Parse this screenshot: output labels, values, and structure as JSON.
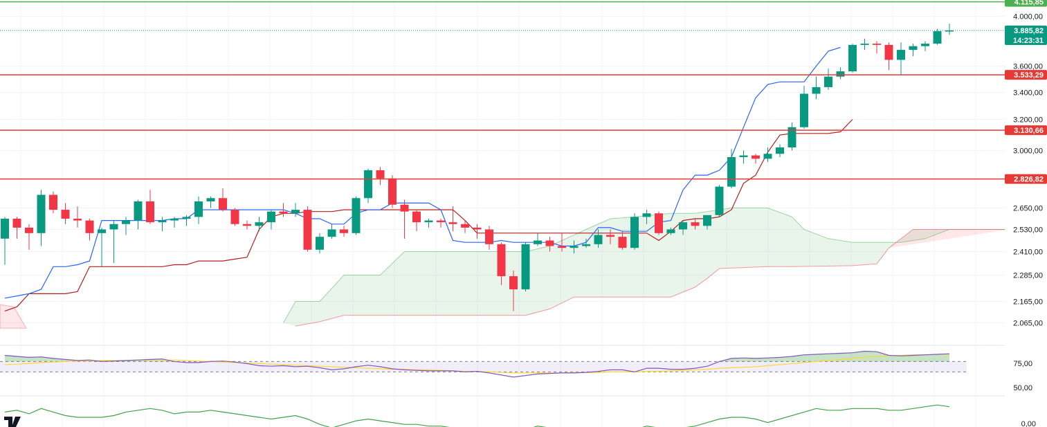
{
  "chart_data": {
    "type": "candlestick",
    "main_y_ticks": [
      "4.000,00",
      "3.600,00",
      "3.400,00",
      "3.200,00",
      "3.000,00",
      "2.650,00",
      "2.530,00",
      "2.410,00",
      "2.285,00",
      "2.165,00",
      "2.065,00"
    ],
    "price_tick_values": [
      4000,
      3600,
      3400,
      3200,
      3000,
      2650,
      2530,
      2410,
      2285,
      2165,
      2065
    ],
    "horizontal_levels": [
      {
        "label": "4.115,85",
        "value": 4115.85,
        "color": "#4caf50"
      },
      {
        "label": "3.533,29",
        "value": 3533.29,
        "color": "#e53935"
      },
      {
        "label": "3.130,66",
        "value": 3130.66,
        "color": "#e53935"
      },
      {
        "label": "2.826,82",
        "value": 2826.82,
        "color": "#e53935"
      }
    ],
    "current_price": {
      "label": "3.885,82",
      "countdown": "14:23:31",
      "value": 3885.82,
      "color": "#089981"
    },
    "candles": [
      [
        2480,
        2600,
        2340,
        2590
      ],
      [
        2590,
        2600,
        2480,
        2540
      ],
      [
        2540,
        2560,
        2420,
        2510
      ],
      [
        2510,
        2760,
        2440,
        2730
      ],
      [
        2730,
        2750,
        2620,
        2640
      ],
      [
        2640,
        2680,
        2560,
        2590
      ],
      [
        2590,
        2660,
        2540,
        2580
      ],
      [
        2580,
        2590,
        2470,
        2510
      ],
      [
        2510,
        2540,
        2330,
        2530
      ],
      [
        2530,
        2580,
        2350,
        2560
      ],
      [
        2560,
        2600,
        2500,
        2580
      ],
      [
        2580,
        2700,
        2530,
        2690
      ],
      [
        2690,
        2760,
        2560,
        2570
      ],
      [
        2570,
        2600,
        2520,
        2580
      ],
      [
        2580,
        2600,
        2540,
        2590
      ],
      [
        2590,
        2610,
        2550,
        2600
      ],
      [
        2600,
        2720,
        2560,
        2690
      ],
      [
        2690,
        2720,
        2650,
        2710
      ],
      [
        2710,
        2770,
        2630,
        2640
      ],
      [
        2640,
        2650,
        2550,
        2560
      ],
      [
        2560,
        2580,
        2530,
        2550
      ],
      [
        2550,
        2600,
        2520,
        2570
      ],
      [
        2570,
        2640,
        2530,
        2630
      ],
      [
        2630,
        2680,
        2600,
        2620
      ],
      [
        2620,
        2680,
        2600,
        2640
      ],
      [
        2640,
        2660,
        2410,
        2420
      ],
      [
        2420,
        2510,
        2400,
        2490
      ],
      [
        2490,
        2560,
        2480,
        2530
      ],
      [
        2530,
        2550,
        2490,
        2510
      ],
      [
        2510,
        2720,
        2500,
        2710
      ],
      [
        2710,
        2890,
        2680,
        2880
      ],
      [
        2880,
        2900,
        2790,
        2830
      ],
      [
        2830,
        2850,
        2650,
        2670
      ],
      [
        2670,
        2700,
        2480,
        2630
      ],
      [
        2630,
        2640,
        2520,
        2570
      ],
      [
        2570,
        2590,
        2540,
        2580
      ],
      [
        2580,
        2590,
        2540,
        2570
      ],
      [
        2570,
        2660,
        2520,
        2560
      ],
      [
        2560,
        2580,
        2510,
        2540
      ],
      [
        2540,
        2560,
        2480,
        2530
      ],
      [
        2530,
        2550,
        2420,
        2450
      ],
      [
        2450,
        2460,
        2240,
        2280
      ],
      [
        2280,
        2310,
        2120,
        2220
      ],
      [
        2220,
        2460,
        2210,
        2450
      ],
      [
        2450,
        2510,
        2440,
        2470
      ],
      [
        2470,
        2490,
        2410,
        2440
      ],
      [
        2440,
        2510,
        2410,
        2430
      ],
      [
        2430,
        2470,
        2400,
        2440
      ],
      [
        2440,
        2480,
        2430,
        2450
      ],
      [
        2450,
        2530,
        2430,
        2500
      ],
      [
        2500,
        2530,
        2450,
        2490
      ],
      [
        2490,
        2520,
        2420,
        2430
      ],
      [
        2430,
        2620,
        2420,
        2600
      ],
      [
        2600,
        2640,
        2560,
        2620
      ],
      [
        2620,
        2630,
        2500,
        2510
      ],
      [
        2510,
        2540,
        2500,
        2530
      ],
      [
        2530,
        2580,
        2500,
        2570
      ],
      [
        2570,
        2590,
        2530,
        2550
      ],
      [
        2550,
        2600,
        2530,
        2610
      ],
      [
        2610,
        2790,
        2600,
        2780
      ],
      [
        2780,
        3010,
        2770,
        2960
      ],
      [
        2960,
        3000,
        2920,
        2970
      ],
      [
        2970,
        2980,
        2920,
        2950
      ],
      [
        2950,
        3020,
        2930,
        2980
      ],
      [
        2980,
        3040,
        2960,
        3020
      ],
      [
        3020,
        3180,
        3000,
        3150
      ],
      [
        3150,
        3450,
        3140,
        3390
      ],
      [
        3390,
        3520,
        3350,
        3440
      ],
      [
        3440,
        3580,
        3420,
        3520
      ],
      [
        3520,
        3590,
        3500,
        3560
      ],
      [
        3560,
        3780,
        3550,
        3770
      ],
      [
        3770,
        3820,
        3730,
        3780
      ],
      [
        3780,
        3800,
        3700,
        3770
      ],
      [
        3770,
        3790,
        3570,
        3650
      ],
      [
        3650,
        3790,
        3530,
        3730
      ],
      [
        3730,
        3780,
        3680,
        3760
      ],
      [
        3760,
        3800,
        3720,
        3780
      ],
      [
        3780,
        3900,
        3770,
        3880
      ],
      [
        3880,
        3940,
        3850,
        3885.82
      ]
    ],
    "tenkan": [
      2180,
      2190,
      2200,
      2220,
      2330,
      2330,
      2340,
      2360,
      2580,
      2580,
      2580,
      2580,
      2580,
      2580,
      2590,
      2590,
      2640,
      2640,
      2640,
      2640,
      2640,
      2640,
      2640,
      2640,
      2620,
      2590,
      2590,
      2560,
      2560,
      2620,
      2640,
      2640,
      2680,
      2680,
      2680,
      2680,
      2640,
      2470,
      2460,
      2460,
      2460,
      2470,
      2460,
      2460,
      2460,
      2460,
      2440,
      2440,
      2460,
      2540,
      2540,
      2520,
      2520,
      2520,
      2570,
      2580,
      2760,
      2850,
      2850,
      2880,
      2960,
      3150,
      3360,
      3460,
      3480,
      3480,
      3480,
      3600,
      3720,
      3750
    ],
    "kijun": [
      2120,
      2140,
      2200,
      2200,
      2200,
      2200,
      2210,
      2330,
      2330,
      2330,
      2330,
      2330,
      2330,
      2330,
      2340,
      2340,
      2360,
      2360,
      2360,
      2370,
      2380,
      2530,
      2600,
      2620,
      2620,
      2630,
      2630,
      2630,
      2640,
      2640,
      2640,
      2640,
      2640,
      2640,
      2640,
      2640,
      2640,
      2640,
      2580,
      2510,
      2510,
      2510,
      2510,
      2510,
      2510,
      2510,
      2510,
      2510,
      2510,
      2510,
      2510,
      2510,
      2510,
      2510,
      2470,
      2520,
      2580,
      2590,
      2590,
      2600,
      2640,
      2800,
      2850,
      2990,
      3100,
      3110,
      3110,
      3110,
      3110,
      3120,
      3200
    ],
    "cloud_lines": {
      "senkou_a": [
        [
          23,
          2065
        ],
        [
          24,
          2165
        ],
        [
          26,
          2165
        ],
        [
          28,
          2285
        ],
        [
          31,
          2285
        ],
        [
          33,
          2410
        ],
        [
          43,
          2410
        ],
        [
          45,
          2440
        ],
        [
          48,
          2530
        ],
        [
          50,
          2590
        ],
        [
          52,
          2600
        ],
        [
          55,
          2620
        ],
        [
          57,
          2620
        ],
        [
          60,
          2650
        ],
        [
          63,
          2650
        ],
        [
          65,
          2600
        ],
        [
          66,
          2530
        ],
        [
          68,
          2480
        ],
        [
          70,
          2460
        ],
        [
          72,
          2460
        ],
        [
          74,
          2460
        ],
        [
          76,
          2480
        ],
        [
          78,
          2530
        ],
        [
          83,
          2530
        ]
      ],
      "senkou_b": [
        [
          24,
          2050
        ],
        [
          26,
          2070
        ],
        [
          28,
          2100
        ],
        [
          31,
          2100
        ],
        [
          33,
          2100
        ],
        [
          40,
          2100
        ],
        [
          43,
          2100
        ],
        [
          45,
          2130
        ],
        [
          47,
          2185
        ],
        [
          50,
          2185
        ],
        [
          53,
          2185
        ],
        [
          55,
          2185
        ],
        [
          57,
          2230
        ],
        [
          58,
          2270
        ],
        [
          59,
          2320
        ],
        [
          61,
          2325
        ],
        [
          63,
          2330
        ],
        [
          65,
          2330
        ],
        [
          70,
          2335
        ],
        [
          72,
          2345
        ],
        [
          73,
          2430
        ],
        [
          75,
          2530
        ],
        [
          83,
          2530
        ]
      ]
    },
    "rsi": {
      "y_ticks": [
        "75,00",
        "50,00"
      ],
      "tick_values": [
        75,
        50
      ],
      "guides": [
        70,
        50
      ],
      "values": [
        82,
        80,
        78,
        79,
        76,
        74,
        72,
        73,
        70,
        71,
        72,
        73,
        74,
        75,
        70,
        68,
        68,
        70,
        71,
        69,
        66,
        62,
        61,
        62,
        60,
        61,
        58,
        54,
        56,
        60,
        63,
        60,
        56,
        54,
        53,
        52,
        52,
        52,
        50,
        51,
        48,
        44,
        40,
        43,
        46,
        47,
        48,
        48,
        49,
        51,
        54,
        54,
        50,
        57,
        57,
        55,
        55,
        57,
        61,
        70,
        76,
        77,
        76,
        77,
        78,
        80,
        83,
        84,
        85,
        86,
        87,
        90,
        89,
        82,
        81,
        82,
        83,
        84,
        85
      ],
      "ma_values": [
        64,
        65,
        66,
        68,
        69,
        70,
        71,
        71,
        72,
        72,
        72,
        73,
        73,
        73,
        73,
        72,
        71,
        70,
        69,
        68,
        67,
        66,
        65,
        64,
        63,
        62,
        61,
        60,
        59,
        58,
        57,
        56,
        55,
        55,
        54,
        54,
        53,
        52,
        51,
        51,
        50,
        49,
        48,
        48,
        48,
        48,
        48,
        49,
        49,
        49,
        50,
        50,
        50,
        51,
        51,
        52,
        53,
        54,
        55,
        57,
        58,
        59,
        60,
        62,
        64,
        66,
        68,
        70,
        72,
        74,
        76,
        78,
        80,
        81,
        82,
        83,
        83,
        84,
        84
      ]
    },
    "lower_osc": {
      "y_ticks": [
        "0,00"
      ],
      "values": [
        -6,
        -5,
        -7,
        -4,
        -6,
        -8,
        -9,
        -9,
        -9,
        -8,
        -6,
        -5,
        -4,
        -5,
        -7,
        -6,
        -6,
        -5,
        -6,
        -7,
        -8,
        -9,
        -10,
        -9,
        -8,
        -10,
        -13,
        -15,
        -13,
        -11,
        -10,
        -11,
        -12,
        -13,
        -13,
        -14,
        -14,
        -15,
        -15,
        -16,
        -17,
        -18,
        -17,
        -16,
        -14,
        -15,
        -16,
        -17,
        -17,
        -16,
        -15,
        -15,
        -16,
        -14,
        -15,
        -16,
        -15,
        -14,
        -12,
        -10,
        -9,
        -9,
        -10,
        -12,
        -10,
        -8,
        -6,
        -4,
        -5,
        -5,
        -4,
        -4,
        -4,
        -5,
        -5,
        -4,
        -3,
        -2,
        -3
      ],
      "range": [
        -20,
        2
      ]
    },
    "colors": {
      "up": "#089981",
      "down": "#f23645",
      "tenkan": "#2962ff",
      "kijun": "#b71c1c",
      "cloud_bull": "#4caf50",
      "cloud_bear": "#f23645",
      "rsi": "#7e57c2",
      "rsi_ma": "#fdd835",
      "lower": "#43a047"
    }
  }
}
